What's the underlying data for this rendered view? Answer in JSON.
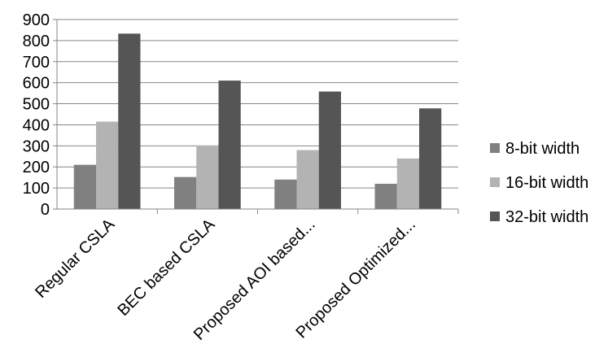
{
  "chart_data": {
    "type": "bar",
    "categories": [
      "Regular CSLA",
      "BEC based CSLA",
      "Proposed AOI based...",
      "Proposed Optimized..."
    ],
    "series": [
      {
        "name": "8-bit width",
        "values": [
          210,
          152,
          140,
          120
        ],
        "color": "#808080"
      },
      {
        "name": "16-bit width",
        "values": [
          415,
          302,
          280,
          240
        ],
        "color": "#b3b3b3"
      },
      {
        "name": "32-bit width",
        "values": [
          833,
          610,
          558,
          478
        ],
        "color": "#555555"
      }
    ],
    "ylim": [
      0,
      900
    ],
    "yticks": [
      "0",
      "100",
      "200",
      "300",
      "400",
      "500",
      "600",
      "700",
      "800",
      "900"
    ],
    "grid": true,
    "legend_position": "right",
    "title": "",
    "xlabel": "",
    "ylabel": ""
  }
}
